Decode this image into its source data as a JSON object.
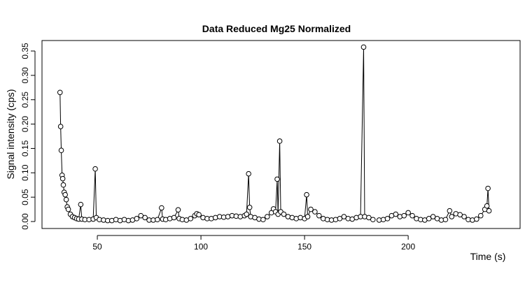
{
  "chart_data": {
    "type": "line",
    "title": "Data Reduced Mg25 Normalized",
    "x_label": "Time (s)",
    "y_label": "Signal intensity (cps)",
    "x": [
      32,
      32.3,
      32.6,
      33,
      33.3,
      33.6,
      34,
      34.5,
      35,
      35.5,
      36,
      37,
      38,
      39,
      40,
      41,
      42,
      42.5,
      44,
      46,
      48,
      49,
      49.5,
      51,
      53,
      55,
      57,
      59,
      61,
      63,
      65,
      67,
      69,
      71,
      73,
      75,
      77,
      79,
      81,
      81.5,
      83,
      85,
      87,
      89,
      89.5,
      91,
      93,
      95,
      97,
      98,
      99,
      101,
      103,
      105,
      107,
      109,
      111,
      113,
      115,
      117,
      119,
      121,
      122,
      123,
      123.5,
      124,
      126,
      128,
      130,
      132,
      134,
      135,
      136,
      136.8,
      137.2,
      138,
      138.5,
      140,
      142,
      144,
      146,
      148,
      150,
      151,
      151.5,
      153,
      155,
      157,
      159,
      161,
      163,
      165,
      167,
      169,
      171,
      173,
      175,
      177,
      178.5,
      179,
      181,
      183,
      184,
      186,
      188,
      190,
      192,
      194,
      196,
      198,
      200,
      202,
      204,
      206,
      208,
      210,
      212,
      214,
      216,
      218,
      220,
      221,
      223,
      225,
      227,
      229,
      231,
      233,
      235,
      237,
      238,
      238.5,
      239
    ],
    "series": [
      {
        "color": "#000000",
        "values": [
          0.265,
          0.195,
          0.146,
          0.095,
          0.088,
          0.075,
          0.06,
          0.055,
          0.045,
          0.03,
          0.025,
          0.015,
          0.01,
          0.008,
          0.006,
          0.005,
          0.035,
          0.005,
          0.004,
          0.004,
          0.005,
          0.108,
          0.008,
          0.004,
          0.003,
          0.002,
          0.002,
          0.004,
          0.002,
          0.004,
          0.002,
          0.003,
          0.006,
          0.012,
          0.008,
          0.003,
          0.003,
          0.004,
          0.028,
          0.005,
          0.004,
          0.006,
          0.008,
          0.024,
          0.006,
          0.004,
          0.003,
          0.006,
          0.012,
          0.016,
          0.014,
          0.008,
          0.006,
          0.006,
          0.008,
          0.01,
          0.009,
          0.01,
          0.012,
          0.011,
          0.01,
          0.012,
          0.015,
          0.098,
          0.029,
          0.01,
          0.008,
          0.005,
          0.004,
          0.01,
          0.018,
          0.026,
          0.02,
          0.087,
          0.015,
          0.165,
          0.02,
          0.015,
          0.01,
          0.008,
          0.006,
          0.008,
          0.006,
          0.055,
          0.01,
          0.025,
          0.02,
          0.012,
          0.006,
          0.004,
          0.003,
          0.004,
          0.006,
          0.01,
          0.006,
          0.005,
          0.008,
          0.01,
          0.358,
          0.01,
          0.008,
          0.004,
          null,
          0.003,
          0.004,
          0.006,
          0.012,
          0.015,
          0.01,
          0.012,
          0.018,
          0.012,
          0.006,
          0.004,
          0.003,
          0.006,
          0.01,
          0.006,
          0.003,
          0.004,
          0.022,
          0.01,
          0.016,
          0.014,
          0.01,
          0.004,
          0.003,
          0.005,
          0.012,
          0.025,
          0.032,
          0.068,
          0.022
        ]
      }
    ],
    "xlim": [
      23.3,
      254
    ],
    "xticks": [
      50,
      100,
      150,
      200
    ],
    "ylim": [
      -0.0143,
      0.3715
    ],
    "yticks": [
      {
        "value": 0,
        "label": "0.00"
      },
      {
        "value": 0.05,
        "label": "0.05"
      },
      {
        "value": 0.1,
        "label": "0.10"
      },
      {
        "value": 0.15,
        "label": "0.15"
      },
      {
        "value": 0.2,
        "label": "0.20"
      },
      {
        "value": 0.25,
        "label": "0.25"
      },
      {
        "value": 0.3,
        "label": "0.30"
      },
      {
        "value": 0.35,
        "label": "0.35"
      }
    ]
  }
}
